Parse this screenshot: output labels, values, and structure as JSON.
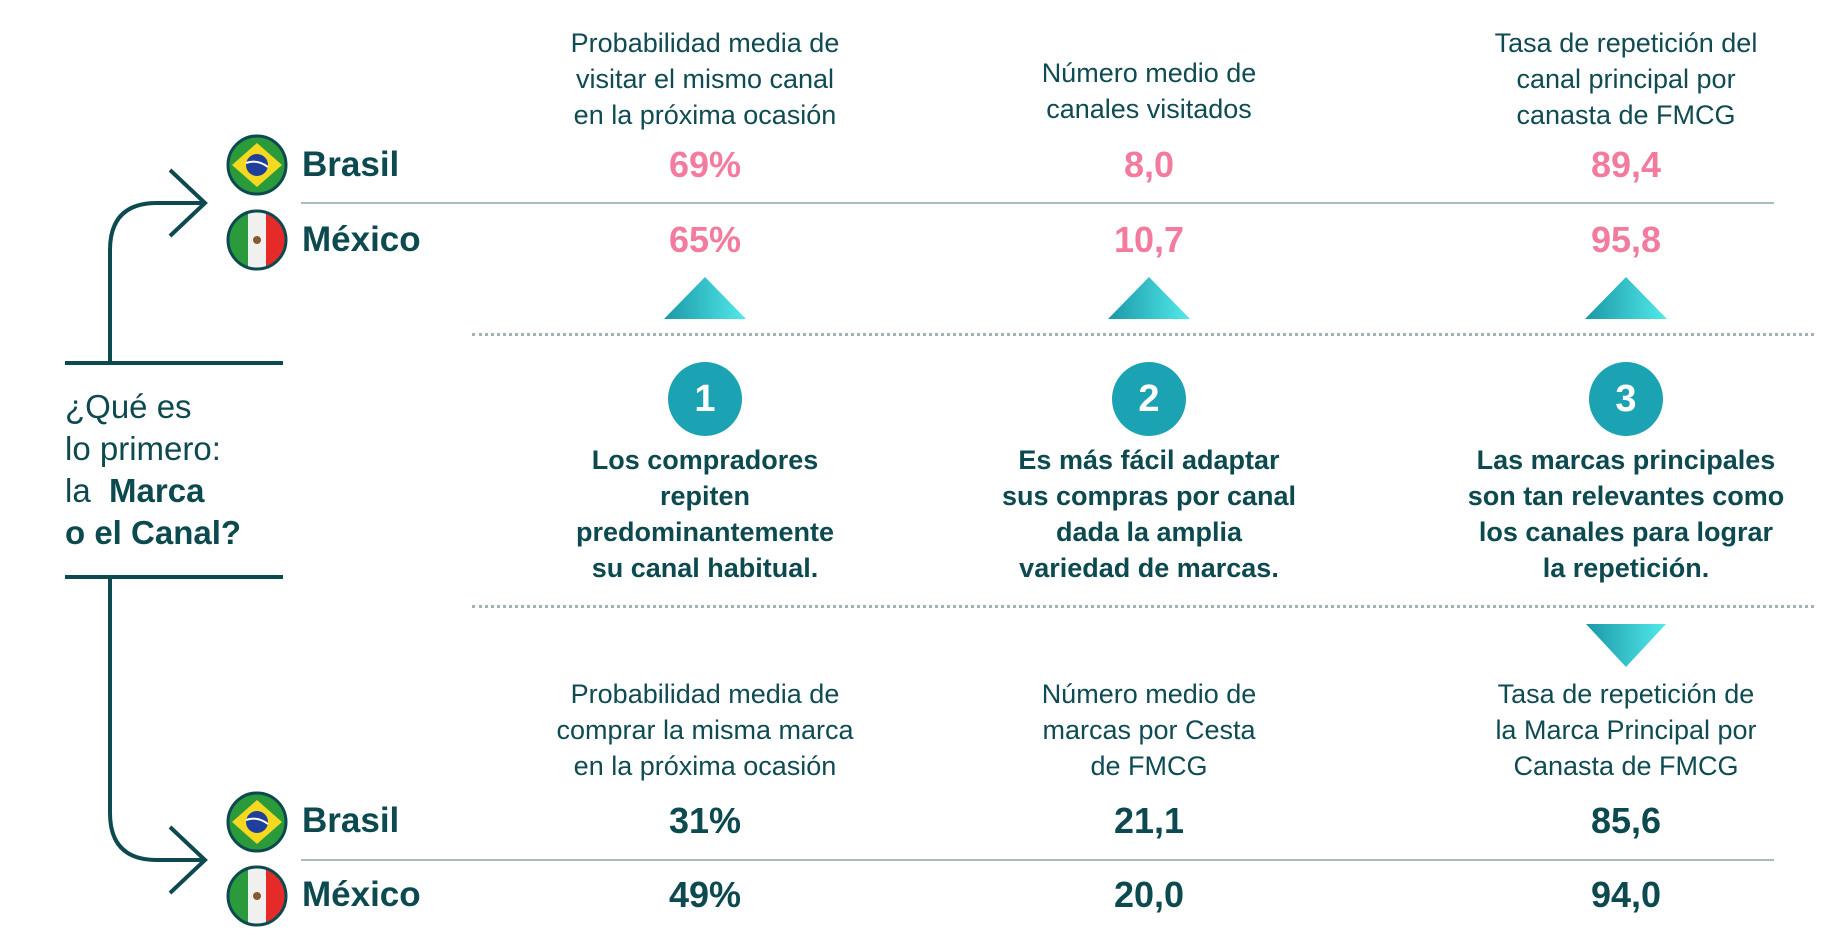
{
  "question": {
    "line1": "¿Qué es",
    "line2": "lo primero:",
    "line3_prefix": "la",
    "line3_bold": "Marca",
    "line4": "o el Canal?"
  },
  "countries": {
    "brasil": "Brasil",
    "mexico": "México"
  },
  "channel_metrics": [
    {
      "header": [
        "Probabilidad media de",
        "visitar el mismo canal",
        "en la próxima ocasión"
      ],
      "brasil": "69%",
      "mexico": "65%"
    },
    {
      "header": [
        "Número medio de",
        "canales visitados"
      ],
      "brasil": "8,0",
      "mexico": "10,7"
    },
    {
      "header": [
        "Tasa de repetición del",
        "canal principal por",
        "canasta de FMCG"
      ],
      "brasil": "89,4",
      "mexico": "95,8"
    }
  ],
  "insights": [
    {
      "number": "1",
      "lines": [
        "Los compradores",
        "repiten",
        "predominantemente",
        "su canal habitual."
      ]
    },
    {
      "number": "2",
      "lines": [
        "Es más fácil adaptar",
        "sus compras por canal",
        "dada la amplia",
        "variedad de marcas."
      ]
    },
    {
      "number": "3",
      "lines": [
        "Las marcas principales",
        "son tan relevantes como",
        "los canales para lograr",
        "la repetición."
      ]
    }
  ],
  "brand_metrics": [
    {
      "header": [
        "Probabilidad media de",
        "comprar la misma marca",
        "en la próxima ocasión"
      ],
      "brasil": "31%",
      "mexico": "49%"
    },
    {
      "header": [
        "Número medio de",
        "marcas por Cesta",
        "de FMCG"
      ],
      "brasil": "21,1",
      "mexico": "20,0"
    },
    {
      "header": [
        "Tasa de repetición de",
        "la Marca Principal por",
        "Canasta de FMCG"
      ],
      "brasil": "85,6",
      "mexico": "94,0"
    }
  ],
  "colors": {
    "dark": "#0d4a50",
    "pink": "#f27b9e",
    "teal": "#1ba3b3",
    "cyan": "#4fe8e8"
  }
}
